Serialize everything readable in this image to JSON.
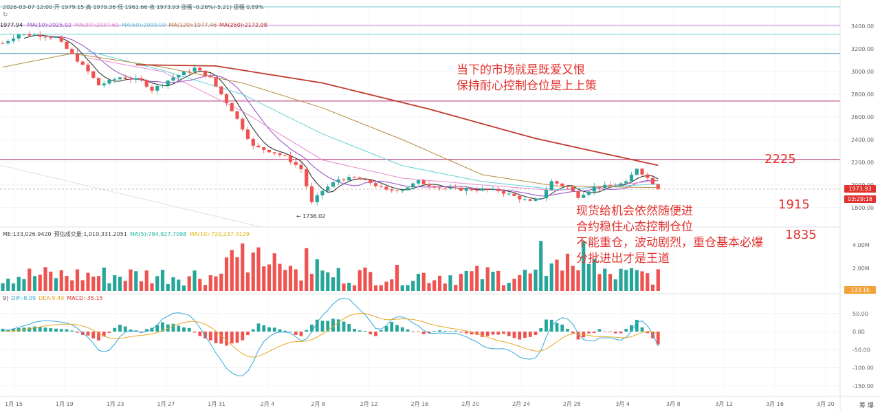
{
  "header": {
    "ohlc": "2026-03-07 12:00  开 1979.15  高 1979.36  低 1961.66  收 1973.93  涨幅 -0.26%(-5.21)  振幅 0.89%",
    "ma_lead": "1977.94",
    "ma_items": [
      {
        "text": "MA(10):2025.02",
        "color": "#9a57c9"
      },
      {
        "text": "MA(30):2037.60",
        "color": "#e58bd0"
      },
      {
        "text": "MA(60):2009.00",
        "color": "#60d1d6"
      },
      {
        "text": "MA(120):1977.46",
        "color": "#b58a3b"
      },
      {
        "text": "MA(250):2172.98",
        "color": "#c0392b"
      }
    ],
    "vol_items": [
      {
        "text": "ME:133,026.9420",
        "color": "#444444"
      },
      {
        "text": "预估成交量:1,010,331.2051",
        "color": "#444444"
      },
      {
        "text": "MA(5):784,927.7098",
        "color": "#1db3a6"
      },
      {
        "text": "MA(10):720,237.3129",
        "color": "#e0b100"
      }
    ],
    "macd_items": [
      {
        "text": "9)",
        "color": "#444444"
      },
      {
        "text": "DIF:-8.09",
        "color": "#2fa7d9"
      },
      {
        "text": "DEA:9.49",
        "color": "#e8a623"
      },
      {
        "text": "MACD:-35.15",
        "color": "#e0322e"
      }
    ]
  },
  "annotations": {
    "note_top": [
      "当下的市场就是既爱又恨",
      "保持耐心控制仓位是上上策"
    ],
    "note_bottom": [
      "现货给机会依然随便进",
      "合约稳住心态控制仓位",
      "不能重仓，波动剧烈，重仓基本必爆",
      "分批进出才是王道"
    ],
    "level_1": "2225",
    "level_2": "1915",
    "level_3": "1835",
    "low_marker": "1736.02"
  },
  "badges": {
    "price": "1973.93",
    "countdown": "03:29:18",
    "volume": "133.1k"
  },
  "corner": "筹  爆",
  "colors": {
    "up": "#26a69a",
    "down": "#ef5350",
    "annotation": "#e0322e",
    "grid": "#ececec"
  },
  "chart_data": {
    "type": "candlestick",
    "x_labels": [
      "1月 15",
      "1月 19",
      "1月 23",
      "1月 27",
      "1月 31",
      "2月 4",
      "2月 8",
      "2月 12",
      "2月 16",
      "2月 20",
      "2月 24",
      "2月 28",
      "3月 4",
      "3月 8",
      "3月 12",
      "3月 16",
      "3月 20"
    ],
    "price_axis": {
      "ticks": [
        "3400.00",
        "3200.00",
        "3000.00",
        "2800.00",
        "2600.00",
        "2400.00",
        "2200.00",
        "2000.00",
        "1800.00"
      ],
      "range": [
        1720,
        3480
      ]
    },
    "volume_axis": {
      "ticks": [
        "4.00M",
        "2.00M"
      ]
    },
    "macd_axis": {
      "ticks": [
        "50.00",
        "0.00",
        "-50.00",
        "-100.00",
        "-150.00"
      ],
      "range": [
        -175,
        80
      ]
    },
    "horizontal_lines": [
      {
        "price": 3410,
        "color": "#c47ad8"
      },
      {
        "price": 3330,
        "color": "#62cfd6"
      },
      {
        "price": 3160,
        "color": "#4a8bb3"
      },
      {
        "price": 2740,
        "color": "#b5286f"
      },
      {
        "price": 2225,
        "color": "#b5286f"
      }
    ],
    "close_anchors": [
      [
        0,
        3250
      ],
      [
        3,
        3330
      ],
      [
        7,
        3320
      ],
      [
        10,
        3300
      ],
      [
        13,
        3150
      ],
      [
        16,
        3000
      ],
      [
        18,
        2880
      ],
      [
        22,
        2950
      ],
      [
        26,
        2920
      ],
      [
        28,
        2840
      ],
      [
        32,
        2950
      ],
      [
        36,
        3030
      ],
      [
        39,
        2940
      ],
      [
        43,
        2660
      ],
      [
        47,
        2340
      ],
      [
        50,
        2300
      ],
      [
        53,
        2250
      ],
      [
        56,
        2140
      ],
      [
        58,
        1840
      ],
      [
        60,
        1950
      ],
      [
        63,
        2050
      ],
      [
        66,
        2060
      ],
      [
        69,
        2020
      ],
      [
        72,
        1950
      ],
      [
        75,
        1960
      ],
      [
        78,
        2030
      ],
      [
        80,
        2000
      ],
      [
        83,
        1970
      ],
      [
        86,
        1960
      ],
      [
        90,
        1960
      ],
      [
        93,
        1950
      ],
      [
        96,
        1900
      ],
      [
        99,
        1850
      ],
      [
        101,
        1890
      ],
      [
        103,
        2030
      ],
      [
        106,
        1980
      ],
      [
        108,
        1900
      ],
      [
        111,
        1980
      ],
      [
        114,
        1990
      ],
      [
        117,
        2020
      ],
      [
        119,
        2150
      ],
      [
        121,
        2060
      ],
      [
        123,
        1974
      ]
    ],
    "ma_lines": [
      {
        "name": "MA(30)",
        "color": "#e58bd0",
        "points": [
          [
            16,
            3120
          ],
          [
            30,
            3000
          ],
          [
            45,
            2650
          ],
          [
            60,
            2220
          ],
          [
            75,
            2060
          ],
          [
            90,
            2000
          ],
          [
            104,
            1950
          ],
          [
            123,
            2037
          ]
        ]
      },
      {
        "name": "MA(60)",
        "color": "#60d1d6",
        "points": [
          [
            16,
            3180
          ],
          [
            30,
            3010
          ],
          [
            45,
            2800
          ],
          [
            60,
            2450
          ],
          [
            75,
            2170
          ],
          [
            90,
            2030
          ],
          [
            104,
            1960
          ],
          [
            123,
            2009
          ]
        ]
      },
      {
        "name": "MA(120)",
        "color": "#b58a3b",
        "points": [
          [
            0,
            3040
          ],
          [
            13,
            3160
          ],
          [
            30,
            3040
          ],
          [
            45,
            2900
          ],
          [
            60,
            2680
          ],
          [
            75,
            2400
          ],
          [
            90,
            2090
          ],
          [
            104,
            1990
          ],
          [
            123,
            1977
          ]
        ]
      },
      {
        "name": "MA(250)",
        "color": "#c0392b",
        "points": [
          [
            25,
            3060
          ],
          [
            40,
            3050
          ],
          [
            60,
            2900
          ],
          [
            80,
            2670
          ],
          [
            100,
            2410
          ],
          [
            123,
            2173
          ]
        ]
      }
    ],
    "macd_anchors": [
      [
        0,
        5
      ],
      [
        6,
        15
      ],
      [
        12,
        8
      ],
      [
        18,
        -22
      ],
      [
        22,
        20
      ],
      [
        26,
        -3
      ],
      [
        30,
        25
      ],
      [
        35,
        10
      ],
      [
        38,
        -20
      ],
      [
        42,
        -40
      ],
      [
        45,
        -25
      ],
      [
        48,
        20
      ],
      [
        52,
        5
      ],
      [
        56,
        -10
      ],
      [
        59,
        30
      ],
      [
        63,
        35
      ],
      [
        66,
        10
      ],
      [
        70,
        -10
      ],
      [
        73,
        25
      ],
      [
        76,
        5
      ],
      [
        79,
        -5
      ],
      [
        83,
        5
      ],
      [
        86,
        0
      ],
      [
        90,
        -15
      ],
      [
        94,
        -5
      ],
      [
        97,
        -20
      ],
      [
        100,
        -10
      ],
      [
        102,
        35
      ],
      [
        105,
        20
      ],
      [
        108,
        -20
      ],
      [
        112,
        5
      ],
      [
        116,
        -5
      ],
      [
        119,
        30
      ],
      [
        123,
        -35
      ]
    ]
  }
}
